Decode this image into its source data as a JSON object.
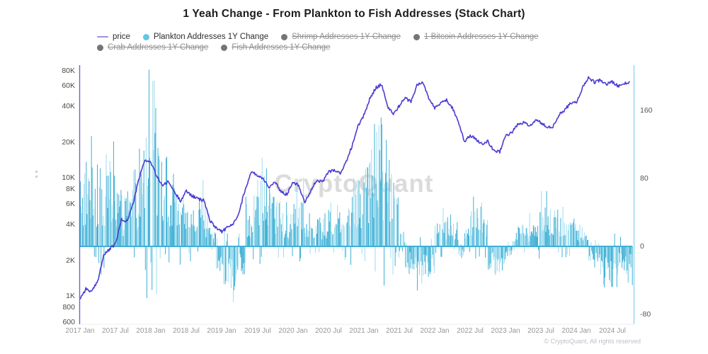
{
  "title": "1 Yeah Change - From Plankton to Fish Addresses (Stack Chart)",
  "watermark": "CryptoQuant",
  "copyright": "© CryptoQuant, All rights reserved",
  "legend": {
    "items": [
      {
        "label": "price",
        "marker": "line",
        "color": "#9a93e2",
        "struck": false
      },
      {
        "label": "Plankton Addresses 1Y Change",
        "marker": "dot",
        "color": "#62c6e8",
        "struck": false
      },
      {
        "label": "Shrimp Addresses 1Y Change",
        "marker": "dot",
        "color": "#757575",
        "struck": true
      },
      {
        "label": "1 Bitcoin Addresses 1Y Change",
        "marker": "dot",
        "color": "#757575",
        "struck": true
      },
      {
        "label": "Crab Addresses 1Y Change",
        "marker": "dot",
        "color": "#757575",
        "struck": true
      },
      {
        "label": "Fish Addresses 1Y Change",
        "marker": "dot",
        "color": "#757575",
        "struck": true
      }
    ]
  },
  "chart_data": {
    "type": "mixed",
    "x_range": [
      "2017-01",
      "2024-10"
    ],
    "x_step_months": 1,
    "series": [
      {
        "name": "price",
        "type": "line",
        "axis": "left",
        "color": "#4a3bd2",
        "values": [
          950,
          1150,
          1080,
          1340,
          2200,
          2480,
          2750,
          4400,
          4300,
          6100,
          9900,
          14200,
          13400,
          10200,
          8600,
          9200,
          7500,
          6400,
          7700,
          7000,
          6600,
          6400,
          4300,
          3800,
          3500,
          3800,
          4100,
          5300,
          8200,
          11200,
          10500,
          9800,
          8300,
          9100,
          7600,
          7200,
          9300,
          8600,
          6200,
          7700,
          9400,
          9150,
          11200,
          11650,
          10800,
          13500,
          18500,
          27000,
          33500,
          46000,
          57500,
          61500,
          40000,
          34500,
          40500,
          47000,
          44000,
          60500,
          64000,
          47000,
          38500,
          43000,
          45200,
          39000,
          30000,
          20000,
          22800,
          21000,
          19500,
          20300,
          16800,
          16600,
          22800,
          23800,
          28000,
          29200,
          27300,
          30200,
          29300,
          26300,
          26900,
          33800,
          37200,
          43200,
          42800,
          58000,
          70000,
          64000,
          66500,
          61500,
          64500,
          59500,
          62500,
          63500
        ]
      },
      {
        "name": "Plankton Addresses 1Y Change",
        "type": "bar",
        "axis": "right",
        "color": "#3fb0d5",
        "color_light": "#9edcef",
        "monthly_envelope": [
          90,
          100,
          95,
          85,
          100,
          95,
          70,
          55,
          70,
          85,
          110,
          160,
          150,
          135,
          100,
          80,
          60,
          50,
          55,
          50,
          60,
          45,
          15,
          -40,
          -60,
          -65,
          -50,
          -30,
          45,
          70,
          95,
          85,
          65,
          50,
          40,
          35,
          65,
          75,
          30,
          25,
          35,
          30,
          40,
          45,
          50,
          60,
          75,
          85,
          120,
          140,
          150,
          135,
          110,
          75,
          20,
          -25,
          -35,
          -40,
          -40,
          -30,
          30,
          35,
          40,
          30,
          -15,
          25,
          45,
          50,
          35,
          -25,
          -35,
          -30,
          -15,
          15,
          25,
          20,
          30,
          45,
          50,
          45,
          40,
          45,
          35,
          30,
          25,
          20,
          -20,
          -30,
          -45,
          -50,
          -45,
          -35,
          -40,
          -35
        ]
      }
    ],
    "left_axis": {
      "scale": "log",
      "line_color": "#6f62d9",
      "range": [
        600,
        80000
      ],
      "ticks": [
        {
          "label": "80K",
          "value": 80000
        },
        {
          "label": "60K",
          "value": 60000
        },
        {
          "label": "40K",
          "value": 40000
        },
        {
          "label": "20K",
          "value": 20000
        },
        {
          "label": "10K",
          "value": 10000
        },
        {
          "label": "8K",
          "value": 8000
        },
        {
          "label": "6K",
          "value": 6000
        },
        {
          "label": "4K",
          "value": 4000
        },
        {
          "label": "2K",
          "value": 2000
        },
        {
          "label": "1K",
          "value": 1000
        },
        {
          "label": "800",
          "value": 800
        },
        {
          "label": "600",
          "value": 600
        }
      ]
    },
    "right_axis": {
      "scale": "linear",
      "line_color": "#8fd8ee",
      "range": [
        -92,
        213
      ],
      "ticks": [
        {
          "label": "160",
          "value": 160
        },
        {
          "label": "80",
          "value": 80
        },
        {
          "label": "0",
          "value": 0
        },
        {
          "label": "-80",
          "value": -80
        }
      ]
    },
    "x_axis": {
      "labels": [
        "2017 Jan",
        "2017 Jul",
        "2018 Jan",
        "2018 Jul",
        "2019 Jan",
        "2019 Jul",
        "2020 Jan",
        "2020 Jul",
        "2021 Jan",
        "2021 Jul",
        "2022 Jan",
        "2022 Jul",
        "2023 Jan",
        "2023 Jul",
        "2024 Jan",
        "2024 Jul"
      ],
      "label_step_months": 6
    }
  }
}
